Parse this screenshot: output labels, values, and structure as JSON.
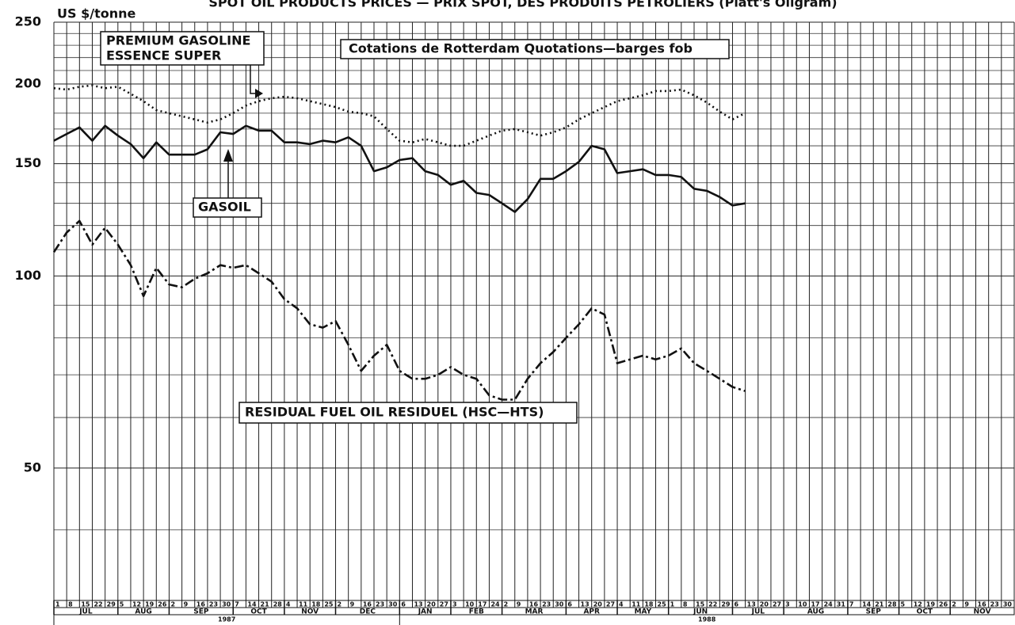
{
  "chart_data": {
    "type": "line",
    "title": "SPOT OIL PRODUCTS PRICES — PRIX SPOT, DES PRODUITS PETROLIERS (Platt's Oilgram)",
    "y_label": "US $/tonne",
    "annotation": "Cotations de Rotterdam Quotations—barges fob",
    "log_y": true,
    "ylim": [
      31,
      250
    ],
    "yticks": [
      50,
      100,
      150,
      200,
      250
    ],
    "minor_yticks": [
      40,
      60,
      70,
      80,
      90,
      110,
      120,
      130,
      140,
      160,
      170,
      180,
      190,
      210,
      220,
      230,
      240
    ],
    "years": [
      {
        "label": "1987",
        "months": [
          {
            "label": "JUL",
            "days": [
              1,
              8,
              15,
              22,
              29
            ]
          },
          {
            "label": "AUG",
            "days": [
              5,
              12,
              19,
              26
            ]
          },
          {
            "label": "SEP",
            "days": [
              2,
              9,
              16,
              23,
              30
            ]
          },
          {
            "label": "OCT",
            "days": [
              7,
              14,
              21,
              28
            ]
          },
          {
            "label": "NOV",
            "days": [
              4,
              11,
              18,
              25
            ]
          },
          {
            "label": "DEC",
            "days": [
              2,
              9,
              16,
              23,
              30
            ]
          }
        ]
      },
      {
        "label": "1988",
        "months": [
          {
            "label": "JAN",
            "days": [
              6,
              13,
              20,
              27
            ]
          },
          {
            "label": "FEB",
            "days": [
              3,
              10,
              17,
              24
            ]
          },
          {
            "label": "MAR",
            "days": [
              2,
              9,
              16,
              23,
              30
            ]
          },
          {
            "label": "APR",
            "days": [
              6,
              13,
              20,
              27
            ]
          },
          {
            "label": "MAY",
            "days": [
              4,
              11,
              18,
              25
            ]
          },
          {
            "label": "JUN",
            "days": [
              1,
              8,
              15,
              22,
              29
            ]
          },
          {
            "label": "JUL",
            "days": [
              6,
              13,
              20,
              27
            ]
          },
          {
            "label": "AUG",
            "days": [
              3,
              10,
              17,
              24,
              31
            ]
          },
          {
            "label": "SEP",
            "days": [
              7,
              14,
              21,
              28
            ]
          },
          {
            "label": "OCT",
            "days": [
              5,
              12,
              19,
              26
            ]
          },
          {
            "label": "NOV",
            "days": [
              2,
              9,
              16,
              23,
              30
            ]
          }
        ]
      }
    ],
    "series": [
      {
        "name": [
          "PREMIUM GASOLINE",
          "ESSENCE SUPER"
        ],
        "color": "#111111",
        "style": "dotted",
        "values": [
          197,
          196,
          198,
          199,
          197,
          198,
          193,
          188,
          182,
          180,
          178,
          176,
          174,
          176,
          180,
          185,
          188,
          190,
          191,
          190,
          188,
          186,
          184,
          181,
          180,
          178,
          170,
          163,
          162,
          164,
          162,
          160,
          160,
          163,
          166,
          169,
          170,
          168,
          166,
          168,
          171,
          176,
          180,
          184,
          188,
          190,
          192,
          195,
          195,
          196,
          192,
          187,
          181,
          176,
          180
        ]
      },
      {
        "name": "GASOIL",
        "color": "#111111",
        "style": "solid",
        "values": [
          163,
          167,
          171,
          163,
          172,
          166,
          161,
          153,
          162,
          155,
          155,
          155,
          158,
          168,
          167,
          172,
          169,
          169,
          162,
          162,
          161,
          163,
          162,
          165,
          160,
          146,
          148,
          152,
          153,
          146,
          144,
          139,
          141,
          135,
          134,
          130,
          126,
          132,
          142,
          142,
          146,
          151,
          160,
          158,
          145,
          146,
          147,
          144,
          144,
          143,
          137,
          136,
          133,
          129,
          130
        ]
      },
      {
        "name": "RESIDUAL FUEL OIL RESIDUEL (HSC—HTS)",
        "color": "#111111",
        "style": "dash-dot",
        "values": [
          109,
          117,
          122,
          112,
          119,
          112,
          104,
          93,
          103,
          97,
          96,
          99,
          101,
          104,
          103,
          104,
          101,
          98,
          92,
          89,
          84,
          83,
          85,
          78,
          71,
          75,
          78,
          71,
          69,
          69,
          70,
          72,
          70,
          69,
          65,
          64,
          64,
          69,
          73,
          76,
          80,
          84,
          89,
          87,
          73,
          74,
          75,
          74,
          75,
          77,
          73,
          71,
          69,
          67,
          66
        ]
      }
    ]
  }
}
